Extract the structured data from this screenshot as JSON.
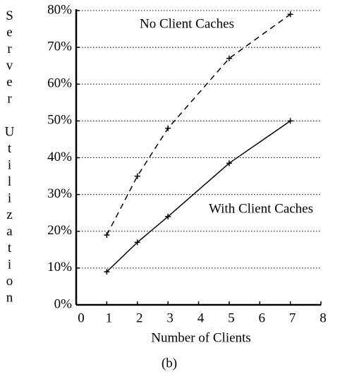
{
  "chart_data": {
    "type": "line",
    "x_label": "Number of Clients",
    "y_label": "Server Utilization",
    "caption": "(b)",
    "series": [
      {
        "name": "No Client Caches",
        "color": "#000000",
        "line_style": "dashed",
        "x": [
          1,
          2,
          3,
          5,
          7
        ],
        "values": [
          19,
          35,
          48,
          67,
          79
        ]
      },
      {
        "name": "With Client Caches",
        "color": "#000000",
        "line_style": "solid",
        "x": [
          1,
          2,
          3,
          5,
          7
        ],
        "values": [
          9,
          17,
          24,
          38.5,
          50
        ]
      }
    ],
    "xlim": [
      0,
      8
    ],
    "xticks": [
      0,
      1,
      2,
      3,
      4,
      5,
      6,
      7,
      8
    ],
    "ylim": [
      0,
      80
    ],
    "yticks": [
      {
        "value": 0,
        "label": "0%"
      },
      {
        "value": 10,
        "label": "10%"
      },
      {
        "value": 20,
        "label": "20%"
      },
      {
        "value": 30,
        "label": "30%"
      },
      {
        "value": 40,
        "label": "40%"
      },
      {
        "value": 50,
        "label": "50%"
      },
      {
        "value": 60,
        "label": "60%"
      },
      {
        "value": 70,
        "label": "70%"
      },
      {
        "value": 80,
        "label": "80%"
      }
    ],
    "grid": true
  }
}
